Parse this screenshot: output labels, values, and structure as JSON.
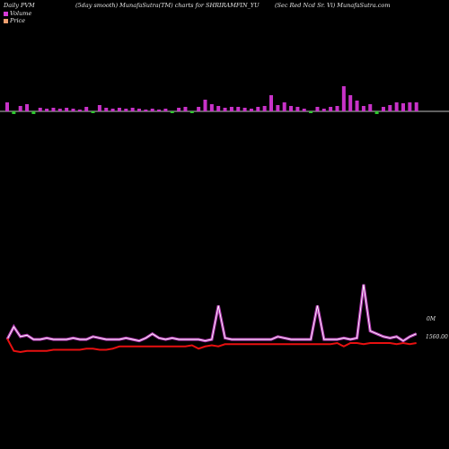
{
  "header": {
    "left": "Daily PVM",
    "center": "(5day smooth) MunafaSutra(TM) charts for SHRIRAMFIN_YU",
    "right": "(Sec Red Ncd Sr. Vi) MunafaSutra.com"
  },
  "legend": [
    {
      "label": "Volume",
      "color": "#d63bd6"
    },
    {
      "label": "Price",
      "color": "#f0a070"
    }
  ],
  "colors": {
    "volume_up": "#c832c8",
    "volume_down": "#2ec82e",
    "volume_line": "#b43ab4",
    "price_line": "#e81010",
    "background": "#000000"
  },
  "chart_data": [
    {
      "type": "bar",
      "title": "Volume bars",
      "values": [
        10,
        -3,
        6,
        8,
        -3,
        4,
        3,
        4,
        3,
        4,
        3,
        2,
        5,
        -2,
        7,
        4,
        3,
        4,
        3,
        4,
        3,
        2,
        3,
        2,
        3,
        -2,
        4,
        5,
        -2,
        5,
        13,
        8,
        6,
        4,
        5,
        5,
        4,
        3,
        5,
        6,
        18,
        7,
        10,
        6,
        5,
        3,
        -2,
        5,
        3,
        5,
        6,
        28,
        18,
        12,
        6,
        8,
        -3,
        5,
        7,
        10,
        9,
        10,
        10
      ]
    },
    {
      "type": "line",
      "series": [
        {
          "name": "Volume",
          "values": [
            58,
            67,
            60,
            61,
            58,
            58,
            59,
            58,
            58,
            58,
            59,
            58,
            58,
            60,
            59,
            58,
            58,
            58,
            59,
            58,
            57,
            59,
            62,
            59,
            58,
            59,
            58,
            58,
            58,
            58,
            57,
            58,
            82,
            59,
            58,
            58,
            58,
            58,
            58,
            58,
            58,
            60,
            59,
            58,
            58,
            58,
            58,
            82,
            58,
            58,
            58,
            59,
            58,
            59,
            97,
            64,
            62,
            60,
            59,
            60,
            57,
            60,
            62
          ]
        },
        {
          "name": "Price",
          "values": [
            1560,
            1549,
            1548,
            1549,
            1549,
            1549,
            1549,
            1550,
            1550,
            1550,
            1550,
            1550,
            1551,
            1551,
            1550,
            1550,
            1551,
            1553,
            1553,
            1553,
            1553,
            1553,
            1553,
            1553,
            1553,
            1553,
            1553,
            1553,
            1554,
            1551,
            1553,
            1554,
            1553,
            1555,
            1555,
            1555,
            1555,
            1555,
            1555,
            1555,
            1555,
            1555,
            1555,
            1555,
            1555,
            1555,
            1555,
            1555,
            1555,
            1555,
            1556,
            1553,
            1556,
            1556,
            1555,
            1556,
            1556,
            1556,
            1556,
            1555,
            1556,
            1555,
            1556
          ]
        }
      ],
      "annotations": [
        "0M",
        "1560.00"
      ]
    }
  ]
}
